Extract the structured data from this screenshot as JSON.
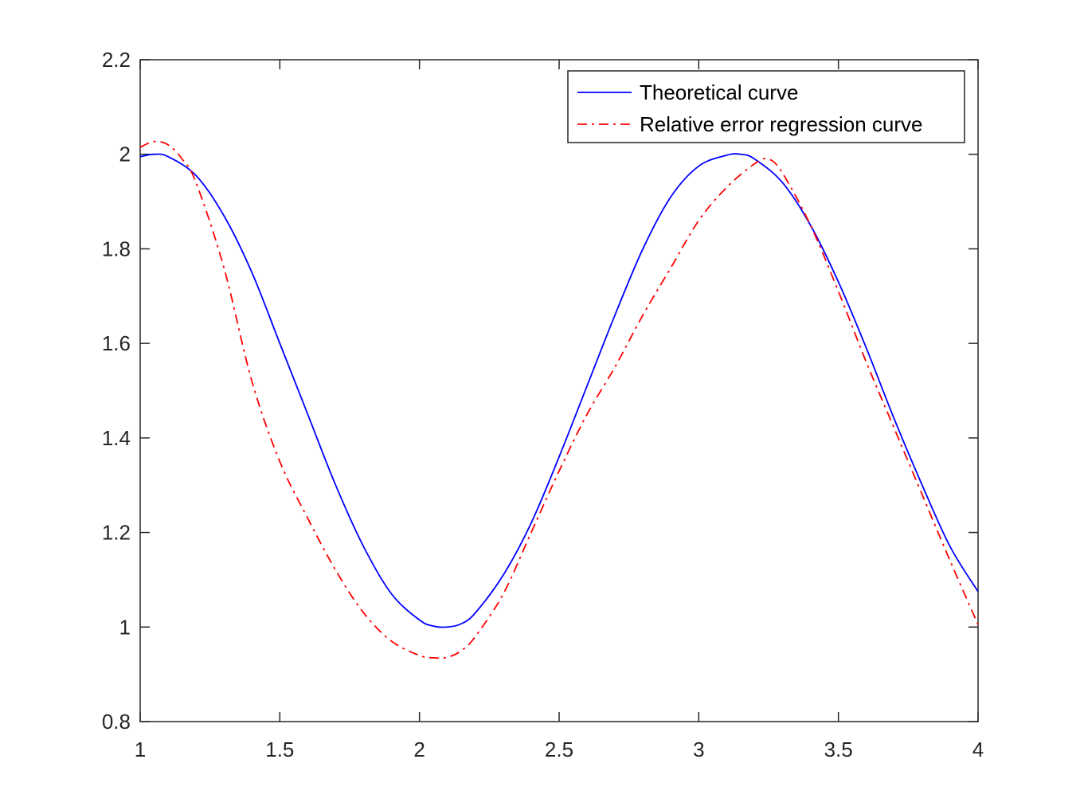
{
  "chart_data": {
    "type": "line",
    "title": "",
    "xlabel": "",
    "ylabel": "",
    "xlim": [
      1,
      4
    ],
    "ylim": [
      0.8,
      2.2
    ],
    "xticks": [
      1,
      1.5,
      2,
      2.5,
      3,
      3.5,
      4
    ],
    "xtick_labels": [
      "1",
      "1.5",
      "2",
      "2.5",
      "3",
      "3.5",
      "4"
    ],
    "yticks": [
      0.8,
      1,
      1.2,
      1.4,
      1.6,
      1.8,
      2,
      2.2
    ],
    "ytick_labels": [
      "0.8",
      "1",
      "1.2",
      "1.4",
      "1.6",
      "1.8",
      "2",
      "2.2"
    ],
    "grid": false,
    "legend_position": "top-right",
    "series": [
      {
        "name": "Theoretical curve",
        "color": "#0000FF",
        "line_style": "solid",
        "x": [
          1.0,
          1.05,
          1.1,
          1.2,
          1.3,
          1.4,
          1.5,
          1.6,
          1.7,
          1.8,
          1.9,
          2.0,
          2.05,
          2.1,
          2.15,
          2.2,
          2.3,
          2.4,
          2.5,
          2.6,
          2.7,
          2.8,
          2.9,
          3.0,
          3.1,
          3.15,
          3.2,
          3.3,
          3.4,
          3.5,
          3.6,
          3.7,
          3.8,
          3.9,
          4.0
        ],
        "y": [
          1.995,
          2.0,
          1.995,
          1.955,
          1.87,
          1.75,
          1.6,
          1.45,
          1.3,
          1.17,
          1.07,
          1.015,
          1.002,
          1.0,
          1.007,
          1.03,
          1.11,
          1.22,
          1.36,
          1.51,
          1.66,
          1.8,
          1.91,
          1.975,
          1.998,
          2.0,
          1.99,
          1.94,
          1.85,
          1.73,
          1.59,
          1.44,
          1.3,
          1.17,
          1.075
        ]
      },
      {
        "name": "Relative error regression curve",
        "color": "#FF0000",
        "line_style": "dashdot",
        "x": [
          1.0,
          1.05,
          1.1,
          1.15,
          1.2,
          1.3,
          1.4,
          1.5,
          1.6,
          1.7,
          1.8,
          1.9,
          2.0,
          2.05,
          2.1,
          2.15,
          2.2,
          2.3,
          2.4,
          2.5,
          2.6,
          2.7,
          2.8,
          2.9,
          3.0,
          3.1,
          3.2,
          3.25,
          3.3,
          3.4,
          3.5,
          3.6,
          3.7,
          3.8,
          3.9,
          4.0
        ],
        "y": [
          2.015,
          2.027,
          2.02,
          1.99,
          1.94,
          1.76,
          1.52,
          1.35,
          1.23,
          1.12,
          1.03,
          0.97,
          0.94,
          0.935,
          0.936,
          0.95,
          0.98,
          1.07,
          1.2,
          1.33,
          1.45,
          1.55,
          1.66,
          1.76,
          1.86,
          1.93,
          1.98,
          1.99,
          1.96,
          1.85,
          1.71,
          1.56,
          1.42,
          1.28,
          1.14,
          1.005
        ]
      }
    ]
  }
}
